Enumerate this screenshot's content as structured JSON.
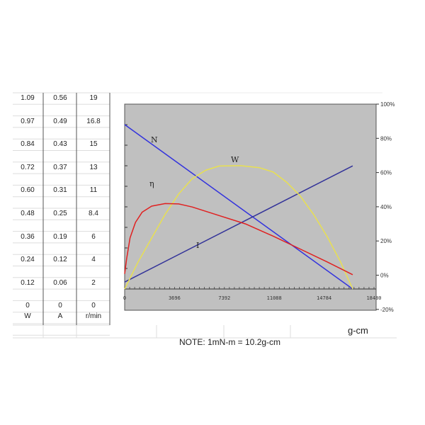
{
  "table": {
    "columns": [
      {
        "unit": "W",
        "values": [
          "1.09",
          "0.97",
          "0.84",
          "0.72",
          "0.60",
          "0.48",
          "0.36",
          "0.24",
          "0.12",
          "0"
        ]
      },
      {
        "unit": "A",
        "values": [
          "0.56",
          "0.49",
          "0.43",
          "0.37",
          "0.31",
          "0.25",
          "0.19",
          "0.12",
          "0.06",
          "0"
        ]
      },
      {
        "unit": "r/min",
        "values": [
          "19",
          "16.8",
          "15",
          "13",
          "11",
          "8.4",
          "6",
          "4",
          "2",
          "0"
        ]
      }
    ]
  },
  "x_unit": "g-cm",
  "note": "NOTE: 1mN-m = 10.2g-cm",
  "chart_data": {
    "type": "line",
    "xlim": [
      0,
      18480
    ],
    "x_ticks": [
      "0",
      "3696",
      "7392",
      "11088",
      "14784",
      "18480"
    ],
    "right_axis": {
      "ylim": [
        -20,
        100
      ],
      "ticks": [
        "100%",
        "80%",
        "60%",
        "40%",
        "20%",
        "0%",
        "-20%"
      ]
    },
    "left_axis_fraction_of_scale": [
      0,
      1
    ],
    "background": "#c0c0c0",
    "grid": false,
    "series": [
      {
        "name": "N",
        "axis": "r/min",
        "scale_max": 19,
        "color": "#3333dd",
        "points": [
          [
            0,
            16.9
          ],
          [
            16900,
            0
          ]
        ]
      },
      {
        "name": "I",
        "axis": "A",
        "scale_max": 0.56,
        "color": "#333399",
        "points": [
          [
            0,
            0.021
          ],
          [
            16900,
            0.373
          ]
        ]
      },
      {
        "name": "W",
        "axis": "W",
        "scale_max": 1.09,
        "color": "#e8e050",
        "points": [
          [
            0,
            0
          ],
          [
            1000,
            0.16
          ],
          [
            2000,
            0.3
          ],
          [
            3000,
            0.44
          ],
          [
            4000,
            0.56
          ],
          [
            5000,
            0.65
          ],
          [
            6000,
            0.7
          ],
          [
            7000,
            0.725
          ],
          [
            8600,
            0.727
          ],
          [
            10000,
            0.715
          ],
          [
            11000,
            0.69
          ],
          [
            12000,
            0.63
          ],
          [
            13000,
            0.55
          ],
          [
            14000,
            0.44
          ],
          [
            15000,
            0.31
          ],
          [
            16000,
            0.16
          ],
          [
            16900,
            0
          ]
        ]
      },
      {
        "name": "η",
        "axis": "percent",
        "color": "#e02020",
        "points": [
          [
            0,
            1
          ],
          [
            150,
            10
          ],
          [
            400,
            22
          ],
          [
            800,
            31
          ],
          [
            1300,
            37
          ],
          [
            2000,
            40.5
          ],
          [
            3000,
            42
          ],
          [
            4000,
            41.8
          ],
          [
            5000,
            40
          ],
          [
            7000,
            35
          ],
          [
            9000,
            30
          ],
          [
            11000,
            23
          ],
          [
            13000,
            15.5
          ],
          [
            15000,
            8
          ],
          [
            16900,
            0.5
          ]
        ]
      }
    ],
    "series_labels": {
      "N": "N",
      "W": "W",
      "η": "η",
      "I": "I"
    }
  }
}
